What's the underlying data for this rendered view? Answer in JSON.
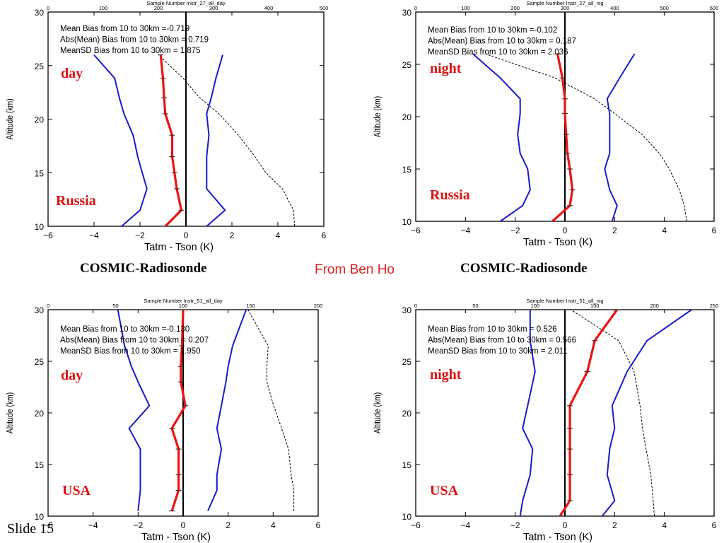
{
  "captions": {
    "left": "COSMIC-Radiosonde",
    "right": "COSMIC-Radiosonde"
  },
  "source": "From Ben Ho",
  "slide_label": "Slide 15",
  "colors": {
    "bias": "#ee1111",
    "sd": "#1a1acc",
    "samples": "#000000",
    "label": "#dd1111"
  },
  "chart_data": [
    {
      "type": "line",
      "top_title": "Sample Number Instr_27_all_day",
      "top_ticks": [
        "0",
        "100",
        "200",
        "300",
        "400",
        "500"
      ],
      "top_lim": [
        0,
        500
      ],
      "xlabel": "Tatm - Tson (K)",
      "ylabel": "Altitude (km)",
      "xlim": [
        -6,
        6
      ],
      "ylim": [
        10,
        30
      ],
      "x_ticks": [
        "−6",
        "−4",
        "−2",
        "0",
        "2",
        "4",
        "6"
      ],
      "y_ticks": [
        "10",
        "15",
        "20",
        "25",
        "30"
      ],
      "stats": [
        "Mean Bias from 10 to 30km =-0.719",
        "Abs(Mean) Bias from 10 to 30km = 0.719",
        "MeanSD Bias from 10 to 30km = 1.875"
      ],
      "label_time": "day",
      "label_region": "Russia",
      "altitudes": [
        10.0,
        11.5,
        13.5,
        15.0,
        16.5,
        18.5,
        20.5,
        22.0,
        23.8,
        26.0
      ],
      "series": [
        {
          "name": "mean",
          "values": [
            -0.9,
            -0.2,
            -0.4,
            -0.5,
            -0.6,
            -0.6,
            -0.9,
            -0.95,
            -1.0,
            -1.1
          ]
        },
        {
          "name": "mean_minus_sd",
          "values": [
            -2.8,
            -2.0,
            -1.7,
            -1.9,
            -2.1,
            -2.3,
            -2.7,
            -2.9,
            -3.1,
            -4.0
          ]
        },
        {
          "name": "mean_plus_sd",
          "values": [
            0.9,
            1.7,
            0.9,
            0.9,
            0.9,
            1.0,
            0.9,
            1.1,
            1.3,
            1.6
          ]
        },
        {
          "name": "sample_number",
          "values": [
            447,
            445,
            425,
            395,
            375,
            345,
            310,
            275,
            245,
            200
          ]
        }
      ]
    },
    {
      "type": "line",
      "top_title": "Sample Number Instr_27_all_nig",
      "top_ticks": [
        "0",
        "100",
        "200",
        "300",
        "400",
        "500",
        "600"
      ],
      "top_lim": [
        0,
        600
      ],
      "xlabel": "Tatm - Tson (K)",
      "ylabel": "Altitude (km)",
      "xlim": [
        -6,
        6
      ],
      "ylim": [
        10,
        30
      ],
      "x_ticks": [
        "−6",
        "−4",
        "−2",
        "0",
        "2",
        "4",
        "6"
      ],
      "y_ticks": [
        "10",
        "15",
        "20",
        "25",
        "30"
      ],
      "stats": [
        "Mean Bias from 10 to 30km =-0.102",
        "Abs(Mean) Bias from 10 to 30km = 0.187",
        "MeanSD Bias from 10 to 30km = 2.036"
      ],
      "label_time": "night",
      "label_region": "Russia",
      "altitudes": [
        10.0,
        11.5,
        13.0,
        15.0,
        16.5,
        18.3,
        20.3,
        21.7,
        23.7,
        26.0
      ],
      "series": [
        {
          "name": "mean",
          "values": [
            -0.5,
            0.2,
            0.3,
            0.2,
            0.1,
            0.05,
            0.0,
            0.0,
            -0.1,
            -0.3
          ]
        },
        {
          "name": "mean_minus_sd",
          "values": [
            -2.6,
            -1.7,
            -1.4,
            -1.5,
            -1.8,
            -1.9,
            -1.8,
            -1.8,
            -2.6,
            -3.7
          ]
        },
        {
          "name": "mean_plus_sd",
          "values": [
            1.9,
            2.1,
            1.8,
            1.6,
            1.8,
            1.8,
            1.8,
            1.7,
            2.2,
            2.8
          ]
        },
        {
          "name": "sample_number",
          "values": [
            545,
            540,
            530,
            510,
            490,
            455,
            400,
            360,
            280,
            140
          ]
        }
      ]
    },
    {
      "type": "line",
      "top_title": "Sample Number Instr_51_all_day",
      "top_ticks": [
        "0",
        "50",
        "100",
        "150",
        "200"
      ],
      "top_lim": [
        0,
        200
      ],
      "xlabel": "Tatm - Tson (K)",
      "ylabel": "Altitude (km)",
      "xlim": [
        -6,
        6
      ],
      "ylim": [
        10,
        30
      ],
      "x_ticks": [
        "−6",
        "−4",
        "−2",
        "0",
        "2",
        "4",
        "6"
      ],
      "y_ticks": [
        "10",
        "15",
        "20",
        "25",
        "30"
      ],
      "stats": [
        "Mean Bias from 10 to 30km =-0.130",
        "Abs(Mean) Bias from 10 to 30km = 0.207",
        "MeanSD Bias from 10 to 30km = 1.950"
      ],
      "label_time": "day",
      "label_region": "USA",
      "altitudes": [
        10.5,
        12.5,
        14.0,
        16.5,
        18.5,
        20.7,
        23.0,
        24.5,
        26.5,
        30.0
      ],
      "series": [
        {
          "name": "mean",
          "values": [
            -0.5,
            -0.2,
            -0.2,
            -0.2,
            -0.5,
            0.1,
            -0.1,
            -0.1,
            -0.05,
            0.0
          ]
        },
        {
          "name": "mean_minus_sd",
          "values": [
            -2.0,
            -1.9,
            -1.9,
            -1.9,
            -2.4,
            -1.5,
            -2.0,
            -2.3,
            -2.6,
            -2.9
          ]
        },
        {
          "name": "mean_plus_sd",
          "values": [
            1.1,
            1.5,
            1.5,
            1.7,
            1.5,
            1.7,
            1.9,
            2.0,
            2.2,
            2.8
          ]
        },
        {
          "name": "sample_number",
          "values": [
            182,
            182,
            180,
            178,
            173,
            167,
            162,
            162,
            163,
            148
          ]
        }
      ]
    },
    {
      "type": "line",
      "top_title": "Sample Number Instr_51_all_nig",
      "top_ticks": [
        "0",
        "50",
        "100",
        "150",
        "200",
        "250"
      ],
      "top_lim": [
        0,
        250
      ],
      "xlabel": "Tatm - Tson (K)",
      "ylabel": "Altitude (km)",
      "xlim": [
        -6,
        6
      ],
      "ylim": [
        10,
        30
      ],
      "x_ticks": [
        "−6",
        "−4",
        "−2",
        "0",
        "2",
        "4",
        "6"
      ],
      "y_ticks": [
        "10",
        "15",
        "20",
        "25",
        "30"
      ],
      "stats": [
        "Mean Bias from 10 to 30km = 0.526",
        "Abs(Mean) Bias from 10 to 30km = 0.566",
        "MeanSD Bias from 10 to 30km = 2.011"
      ],
      "label_time": "night",
      "label_region": "USA",
      "altitudes": [
        10.0,
        11.5,
        14.0,
        16.5,
        18.5,
        20.7,
        24.0,
        27.0,
        30.0
      ],
      "series": [
        {
          "name": "mean",
          "values": [
            -0.2,
            0.2,
            0.2,
            0.2,
            0.2,
            0.2,
            0.9,
            1.2,
            2.1
          ]
        },
        {
          "name": "mean_minus_sd",
          "values": [
            -1.8,
            -1.7,
            -1.4,
            -1.3,
            -1.7,
            -1.5,
            -1.2,
            -1.4,
            -1.4
          ]
        },
        {
          "name": "mean_plus_sd",
          "values": [
            1.5,
            2.0,
            1.7,
            1.8,
            2.0,
            1.9,
            2.5,
            3.3,
            5.1
          ]
        },
        {
          "name": "sample_number",
          "values": [
            200,
            199,
            197,
            193,
            190,
            188,
            183,
            170,
            130
          ]
        }
      ]
    }
  ]
}
